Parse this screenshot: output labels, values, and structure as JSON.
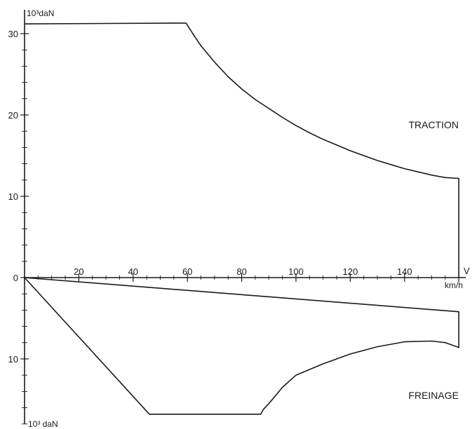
{
  "chart_data": {
    "type": "line",
    "title": "",
    "x_label": "V",
    "x_unit": "km/h",
    "y_top_label": "10³daN",
    "y_bottom_label": "10³ daN",
    "x_range": [
      0,
      160
    ],
    "y_range": [
      -18,
      31.5
    ],
    "x_ticks": [
      20,
      40,
      60,
      80,
      100,
      120,
      140
    ],
    "x_tick_labels": [
      "20",
      "40",
      "60",
      "80",
      "100",
      "120",
      "140"
    ],
    "y_ticks": [
      30,
      20,
      10,
      0,
      -10
    ],
    "y_tick_labels": [
      "30",
      "20",
      "10",
      "0",
      "10"
    ],
    "series": [
      {
        "name": "TRACTION",
        "points": [
          [
            0,
            31.2
          ],
          [
            59.5,
            31.3
          ],
          [
            62,
            30.0
          ],
          [
            65,
            28.5
          ],
          [
            70,
            26.5
          ],
          [
            75,
            24.7
          ],
          [
            80,
            23.2
          ],
          [
            85,
            21.9
          ],
          [
            90,
            20.8
          ],
          [
            95,
            19.7
          ],
          [
            100,
            18.7
          ],
          [
            105,
            17.8
          ],
          [
            110,
            17.0
          ],
          [
            115,
            16.3
          ],
          [
            120,
            15.6
          ],
          [
            125,
            15.0
          ],
          [
            130,
            14.4
          ],
          [
            135,
            13.9
          ],
          [
            140,
            13.4
          ],
          [
            145,
            13.0
          ],
          [
            150,
            12.6
          ],
          [
            155,
            12.3
          ],
          [
            160,
            12.2
          ],
          [
            160,
            0
          ]
        ]
      },
      {
        "name": "FREINAGE",
        "points": [
          [
            0,
            0
          ],
          [
            160,
            -4.2
          ],
          [
            160,
            -8.6
          ],
          [
            155,
            -8.0
          ],
          [
            150,
            -7.8
          ],
          [
            140,
            -7.9
          ],
          [
            130,
            -8.5
          ],
          [
            120,
            -9.4
          ],
          [
            110,
            -10.6
          ],
          [
            100,
            -12.0
          ],
          [
            95,
            -13.5
          ],
          [
            90,
            -15.5
          ],
          [
            88,
            -16.2
          ],
          [
            87,
            -16.8
          ],
          [
            85,
            -16.8
          ],
          [
            46,
            -16.8
          ],
          [
            0,
            0
          ]
        ]
      }
    ],
    "annotations": [
      {
        "text": "TRACTION",
        "x": 148,
        "y": 18.8
      },
      {
        "text": "FREINAGE",
        "x": 148,
        "y": -14.5
      }
    ]
  }
}
